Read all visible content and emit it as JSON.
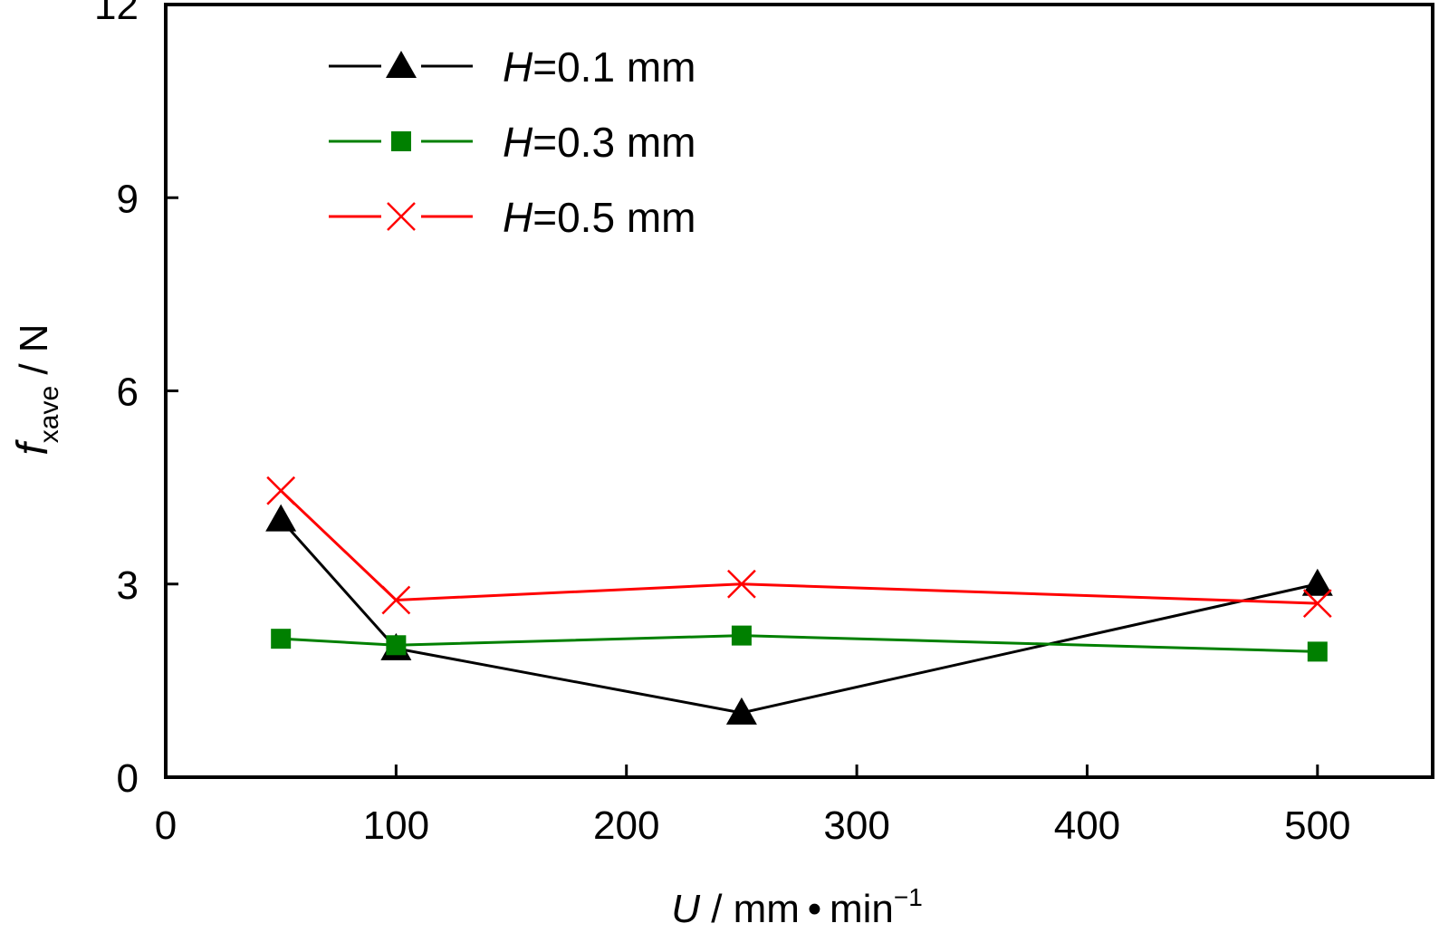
{
  "chart_data": {
    "type": "line",
    "xlabel": {
      "var": "U",
      "rest": " / mm • min",
      "sup": "−1"
    },
    "ylabel": {
      "var": "f",
      "sub": "xave",
      "rest": " / N"
    },
    "xlim": [
      0,
      550
    ],
    "ylim": [
      0,
      12
    ],
    "xticks": [
      0,
      100,
      200,
      300,
      400,
      500
    ],
    "yticks": [
      0,
      3,
      6,
      9,
      12
    ],
    "x": [
      50,
      100,
      250,
      500
    ],
    "grid": false,
    "legend_position": "top-left",
    "series": [
      {
        "name": "H=0.1 mm",
        "legend_var": "H",
        "legend_rest": "=0.1 mm",
        "color": "#000000",
        "marker": "triangle",
        "values": [
          4.0,
          2.0,
          1.0,
          3.0
        ]
      },
      {
        "name": "H=0.3 mm",
        "legend_var": "H",
        "legend_rest": "=0.3 mm",
        "color": "#008000",
        "marker": "square",
        "values": [
          2.15,
          2.05,
          2.2,
          1.95
        ]
      },
      {
        "name": "H=0.5 mm",
        "legend_var": "H",
        "legend_rest": "=0.5 mm",
        "color": "#ff0000",
        "marker": "cross",
        "values": [
          4.45,
          2.75,
          3.0,
          2.7
        ]
      }
    ]
  }
}
